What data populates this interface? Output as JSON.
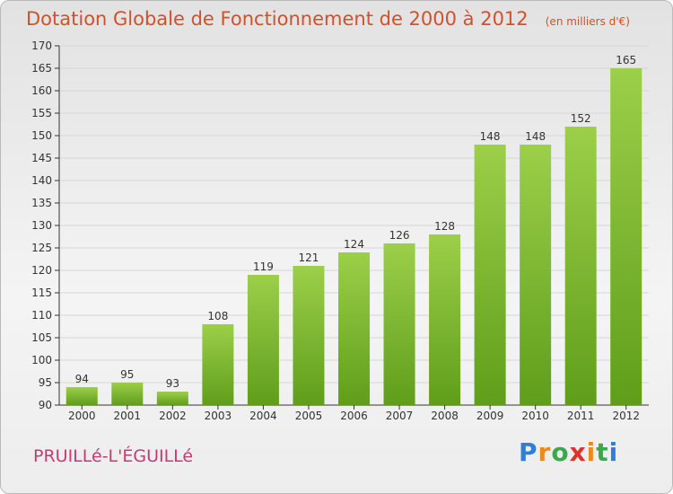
{
  "header": {
    "title": "Dotation Globale de Fonctionnement de 2000 à 2012",
    "unit": "(en milliers d'€)"
  },
  "footer": {
    "commune": "PRUILLé-L'ÉGUILLé",
    "brand": "Proxiti"
  },
  "colors": {
    "bar_top": "#9ccf4a",
    "bar_bottom": "#5f9e1a",
    "title": "#d2502a",
    "commune": "#c43b71"
  },
  "chart_data": {
    "type": "bar",
    "title": "Dotation Globale de Fonctionnement de 2000 à 2012",
    "subtitle": "(en milliers d'€)",
    "xlabel": "",
    "ylabel": "",
    "categories": [
      "2000",
      "2001",
      "2002",
      "2003",
      "2004",
      "2005",
      "2006",
      "2007",
      "2008",
      "2009",
      "2010",
      "2011",
      "2012"
    ],
    "values": [
      94,
      95,
      93,
      108,
      119,
      121,
      124,
      126,
      128,
      148,
      148,
      152,
      165
    ],
    "ylim": [
      90,
      170
    ],
    "yticks": [
      90,
      95,
      100,
      105,
      110,
      115,
      120,
      125,
      130,
      135,
      140,
      145,
      150,
      155,
      160,
      165,
      170
    ],
    "grid": true,
    "legend": "none"
  }
}
